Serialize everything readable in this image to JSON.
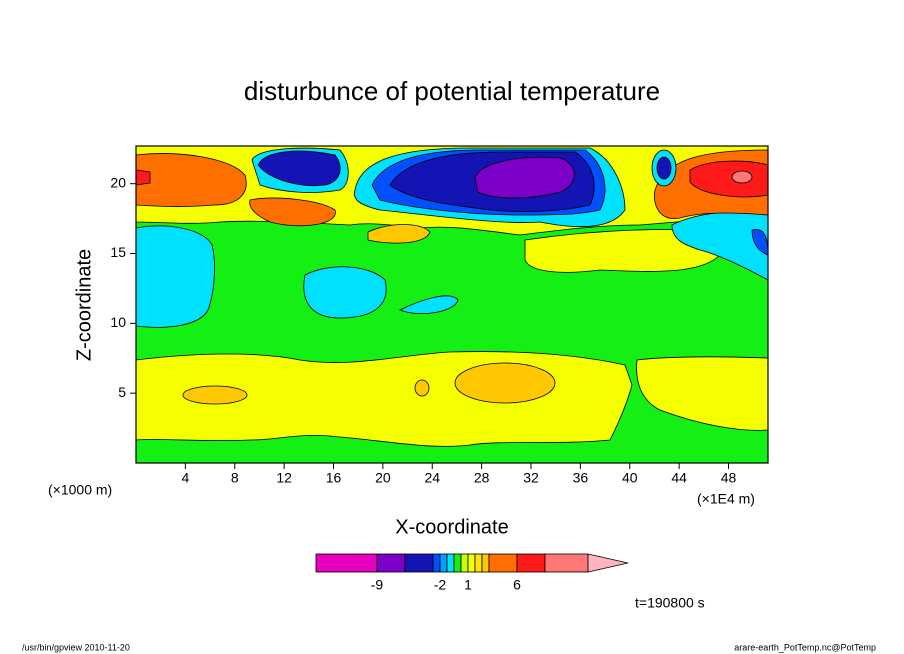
{
  "chart_data": {
    "type": "contour",
    "title": "disturbunce of potential temperature",
    "xlabel": "X-coordinate",
    "ylabel": "Z-coordinate",
    "x_unit": "(×1000 m)",
    "x_scale": "(×1E4 m)",
    "xlim": [
      0,
      51.2
    ],
    "xticks": [
      4,
      8,
      12,
      16,
      20,
      24,
      28,
      32,
      36,
      40,
      44,
      48
    ],
    "ylim": [
      0,
      22.7
    ],
    "yticks": [
      5,
      10,
      15,
      20
    ],
    "colorbar": {
      "colors": [
        "#e600bf",
        "#7d00c8",
        "#1414b4",
        "#0050ff",
        "#00a0ff",
        "#00e1ff",
        "#14f014",
        "#c8ff00",
        "#f5ff00",
        "#ffe600",
        "#ffc800",
        "#ff6f00",
        "#ff1a1a",
        "#ff7878",
        "#ffb4c0"
      ],
      "levels": [
        -9,
        null,
        null,
        -2,
        null,
        null,
        null,
        1,
        null,
        null,
        null,
        6,
        null
      ]
    },
    "time": "t=190800 s",
    "footer_left": "/usr/bin/gpview  2010-11-20",
    "footer_right": "arare-earth_PotTemp.nc@PotTemp"
  }
}
